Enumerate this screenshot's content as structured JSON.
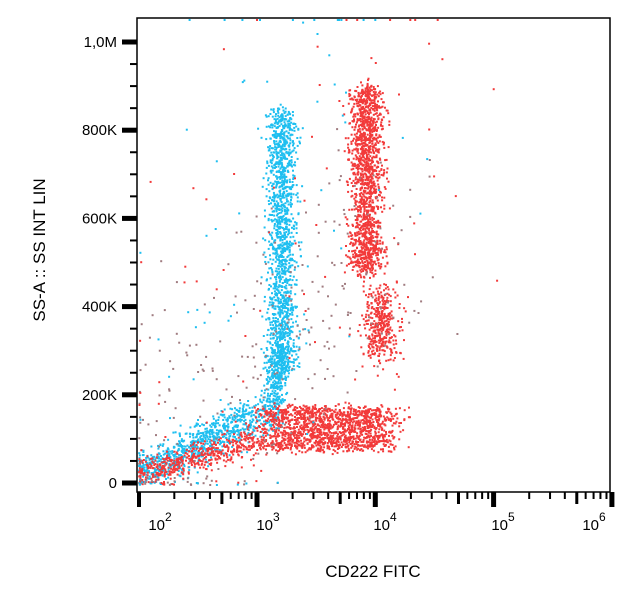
{
  "chart_data": {
    "type": "scatter",
    "title": "",
    "xlabel": "CD222 FITC",
    "ylabel": "SS-A :: SS INT LIN",
    "x_scale": "log",
    "xlim": [
      100,
      1000000
    ],
    "ylim": [
      -20000,
      1050000
    ],
    "x_ticks": [
      {
        "exp": "2"
      },
      {
        "exp": "3"
      },
      {
        "exp": "4"
      },
      {
        "exp": "5"
      },
      {
        "exp": "6"
      }
    ],
    "x_tick_base": "10",
    "y_ticks": [
      {
        "value": 0,
        "label": "0"
      },
      {
        "value": 200000,
        "label": "200K"
      },
      {
        "value": 400000,
        "label": "400K"
      },
      {
        "value": 600000,
        "label": "600K"
      },
      {
        "value": 800000,
        "label": "800K"
      },
      {
        "value": 1000000,
        "label": "1,0M"
      }
    ],
    "grid": false,
    "colors": {
      "blue": "#1ebff0",
      "red": "#f23a3a",
      "gray": "#a07c80"
    },
    "populations": [
      {
        "color": "blue",
        "x_log10": [
          3.2,
          3.2
        ],
        "y": [
          250000,
          850000
        ],
        "x_sd": 0.06,
        "y_sd": 30000,
        "count": 1500
      },
      {
        "color": "blue",
        "x_log10": [
          3.1,
          3.2
        ],
        "y": [
          150000,
          300000
        ],
        "x_sd": 0.05,
        "y_sd": 20000,
        "count": 300
      },
      {
        "color": "blue",
        "x_log10": [
          2.0,
          3.0
        ],
        "y": [
          20000,
          160000
        ],
        "x_sd": 0.08,
        "y_sd": 20000,
        "count": 800
      },
      {
        "color": "red",
        "x_log10": [
          3.92,
          3.92
        ],
        "y": [
          480000,
          900000
        ],
        "x_sd": 0.07,
        "y_sd": 40000,
        "count": 1500
      },
      {
        "color": "red",
        "x_log10": [
          4.04,
          4.04
        ],
        "y": [
          300000,
          420000
        ],
        "x_sd": 0.07,
        "y_sd": 25000,
        "count": 400
      },
      {
        "color": "red",
        "x_log10": [
          3.1,
          4.1
        ],
        "y": [
          80000,
          170000
        ],
        "x_sd": 0.1,
        "y_sd": 25000,
        "count": 1500
      },
      {
        "color": "red",
        "x_log10": [
          2.0,
          3.0
        ],
        "y": [
          20000,
          100000
        ],
        "x_sd": 0.1,
        "y_sd": 15000,
        "count": 500
      },
      {
        "color": "gray",
        "x_log10": [
          2.0,
          4.2
        ],
        "y": [
          20000,
          600000
        ],
        "x_sd": 0.3,
        "y_sd": 150000,
        "count": 250
      },
      {
        "color": "blue",
        "x_log10": [
          2.0,
          4.0
        ],
        "y": [
          0,
          1000000
        ],
        "x_sd": 0.35,
        "y_sd": 300000,
        "count": 80
      },
      {
        "color": "red",
        "x_log10": [
          2.0,
          4.6
        ],
        "y": [
          0,
          1000000
        ],
        "x_sd": 0.35,
        "y_sd": 300000,
        "count": 80
      }
    ]
  }
}
